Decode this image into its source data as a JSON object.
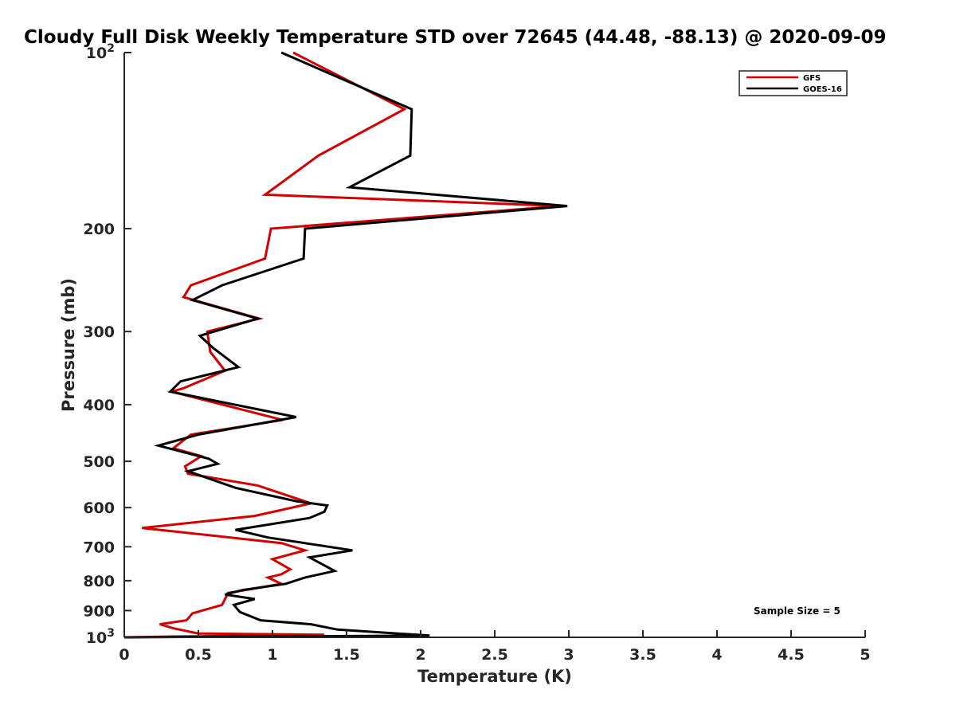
{
  "chart_data": {
    "type": "line",
    "title": "Cloudy Full Disk Weekly Temperature STD over 72645 (44.48, -88.13) @ 2020-09-09",
    "xlabel": "Temperature (K)",
    "ylabel": "Pressure (mb)",
    "xlim": [
      0,
      5
    ],
    "ylim": [
      100,
      1000
    ],
    "y_scale": "log",
    "y_reversed": true,
    "x_ticks": [
      "0",
      "0.5",
      "1",
      "1.5",
      "2",
      "2.5",
      "3",
      "3.5",
      "4",
      "4.5",
      "5"
    ],
    "y_ticks": [
      {
        "value": 100,
        "label": "10",
        "sup": "2"
      },
      {
        "value": 200,
        "label": "200"
      },
      {
        "value": 300,
        "label": "300"
      },
      {
        "value": 400,
        "label": "400"
      },
      {
        "value": 500,
        "label": "500"
      },
      {
        "value": 600,
        "label": "600"
      },
      {
        "value": 700,
        "label": "700"
      },
      {
        "value": 800,
        "label": "800"
      },
      {
        "value": 900,
        "label": "900"
      },
      {
        "value": 1000,
        "label": "10",
        "sup": "3"
      }
    ],
    "grid": false,
    "legend_position": "top-right",
    "annotation": "Sample Size = 5",
    "series": [
      {
        "name": "GFS",
        "color": "#d40000",
        "points": [
          [
            1.14,
            100
          ],
          [
            1.89,
            125
          ],
          [
            1.31,
            150
          ],
          [
            0.95,
            175
          ],
          [
            2.95,
            183
          ],
          [
            0.99,
            200
          ],
          [
            0.95,
            225
          ],
          [
            0.45,
            250
          ],
          [
            0.4,
            262
          ],
          [
            0.91,
            285
          ],
          [
            0.56,
            300
          ],
          [
            0.58,
            325
          ],
          [
            0.68,
            350
          ],
          [
            0.4,
            375
          ],
          [
            0.32,
            380
          ],
          [
            1.07,
            425
          ],
          [
            0.45,
            450
          ],
          [
            0.33,
            475
          ],
          [
            0.52,
            490
          ],
          [
            0.41,
            510
          ],
          [
            0.43,
            525
          ],
          [
            0.9,
            550
          ],
          [
            1.26,
            590
          ],
          [
            0.88,
            620
          ],
          [
            0.12,
            650
          ],
          [
            1.06,
            690
          ],
          [
            1.22,
            710
          ],
          [
            1.0,
            735
          ],
          [
            1.12,
            765
          ],
          [
            1.06,
            780
          ],
          [
            0.97,
            790
          ],
          [
            1.06,
            810
          ],
          [
            0.7,
            840
          ],
          [
            0.66,
            880
          ],
          [
            0.46,
            910
          ],
          [
            0.42,
            935
          ],
          [
            0.24,
            950
          ],
          [
            0.33,
            965
          ],
          [
            0.5,
            985
          ],
          [
            1.35,
            990
          ],
          [
            0.33,
            997
          ],
          [
            0.0,
            1000
          ]
        ]
      },
      {
        "name": "GOES-16",
        "color": "#000000",
        "points": [
          [
            1.06,
            100
          ],
          [
            1.94,
            125
          ],
          [
            1.93,
            150
          ],
          [
            1.52,
            170
          ],
          [
            2.99,
            183
          ],
          [
            1.22,
            200
          ],
          [
            1.21,
            225
          ],
          [
            0.66,
            250
          ],
          [
            0.46,
            265
          ],
          [
            0.9,
            285
          ],
          [
            0.51,
            305
          ],
          [
            0.6,
            320
          ],
          [
            0.77,
            345
          ],
          [
            0.38,
            365
          ],
          [
            0.31,
            380
          ],
          [
            1.16,
            420
          ],
          [
            0.5,
            450
          ],
          [
            0.23,
            470
          ],
          [
            0.57,
            495
          ],
          [
            0.63,
            505
          ],
          [
            0.43,
            520
          ],
          [
            0.75,
            555
          ],
          [
            1.16,
            585
          ],
          [
            1.37,
            595
          ],
          [
            1.35,
            610
          ],
          [
            1.25,
            625
          ],
          [
            0.75,
            655
          ],
          [
            0.97,
            675
          ],
          [
            1.54,
            710
          ],
          [
            1.25,
            730
          ],
          [
            1.42,
            770
          ],
          [
            1.22,
            790
          ],
          [
            1.09,
            810
          ],
          [
            0.8,
            830
          ],
          [
            0.68,
            845
          ],
          [
            0.88,
            860
          ],
          [
            0.74,
            880
          ],
          [
            0.78,
            905
          ],
          [
            0.92,
            935
          ],
          [
            1.26,
            950
          ],
          [
            1.44,
            970
          ],
          [
            2.06,
            993
          ],
          [
            0.0,
            1000
          ]
        ]
      }
    ]
  }
}
